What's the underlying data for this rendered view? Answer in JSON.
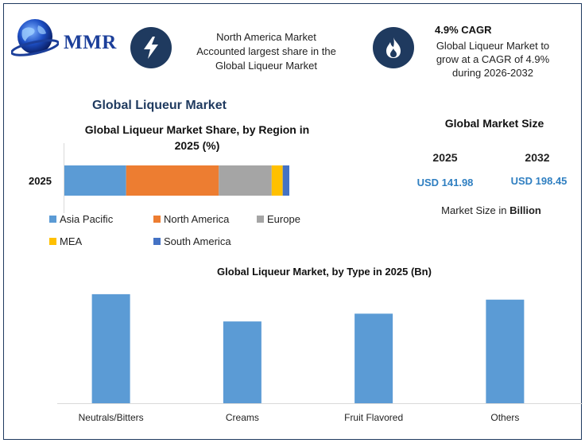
{
  "header": {
    "logo_text": "MMR",
    "info_line1": "North America Market",
    "info_line2": "Accounted largest share in the",
    "info_line3": "Global Liqueur Market",
    "cagr_title": "4.9% CAGR",
    "cagr_line1": "Global Liqueur Market to",
    "cagr_line2": "grow at a CAGR of 4.9%",
    "cagr_line3": "during 2026-2032",
    "icons": [
      "globe-logo-icon",
      "lightning-icon",
      "flame-icon"
    ],
    "brand_color": "#1f3a5f"
  },
  "main_title": "Global Liqueur Market",
  "market_size": {
    "title": "Global Market Size",
    "years": [
      "2025",
      "2032"
    ],
    "values": [
      "USD 141.98",
      "USD 198.45"
    ],
    "note_prefix": "Market Size in ",
    "note_bold": "Billion"
  },
  "chart_data": [
    {
      "type": "bar",
      "orientation": "horizontal-stacked",
      "title_line1": "Global Liqueur Market Share, by Region in",
      "title_line2": "2025 (%)",
      "categories": [
        "2025"
      ],
      "series": [
        {
          "name": "Asia Pacific",
          "values": [
            28
          ],
          "color": "#5b9bd5"
        },
        {
          "name": "North America",
          "values": [
            42
          ],
          "color": "#ed7d31"
        },
        {
          "name": "Europe",
          "values": [
            24
          ],
          "color": "#a5a5a5"
        },
        {
          "name": "MEA",
          "values": [
            5
          ],
          "color": "#ffc000"
        },
        {
          "name": "South America",
          "values": [
            3
          ],
          "color": "#4472c4"
        }
      ],
      "xlim": [
        0,
        102
      ],
      "legend": "bottom"
    },
    {
      "type": "bar",
      "title": "Global Liqueur Market, by Type in 2025 (Bn)",
      "categories": [
        "Neutrals/Bitters",
        "Creams",
        "Fruit Flavored",
        "Others"
      ],
      "values": [
        140,
        105,
        115,
        133
      ],
      "ylim": [
        0,
        145
      ],
      "color": "#5b9bd5",
      "grid": false
    }
  ]
}
